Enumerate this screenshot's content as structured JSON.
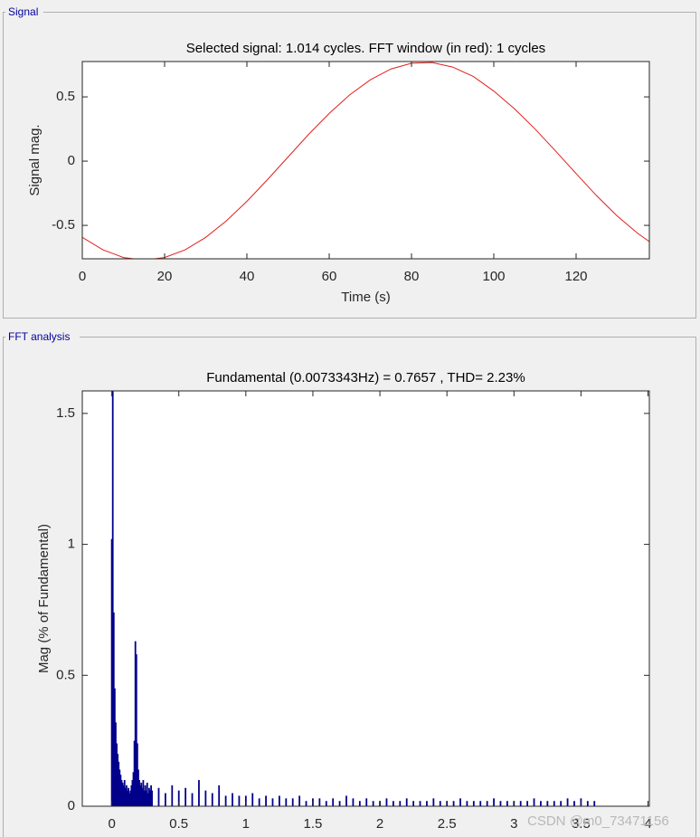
{
  "panels": [
    "Signal",
    "FFT analysis"
  ],
  "watermark": "CSDN @m0_73471156",
  "chart_data": [
    {
      "type": "line",
      "title": "Selected signal: 1.014 cycles. FFT window (in red): 1 cycles",
      "xlabel": "Time (s)",
      "ylabel": "Signal mag.",
      "color": "#e0201b",
      "x": [
        0,
        5,
        10,
        15,
        20,
        25,
        30,
        35,
        40,
        45,
        50,
        55,
        60,
        65,
        70,
        75,
        80,
        85,
        90,
        95,
        100,
        105,
        110,
        115,
        120,
        125,
        130,
        135,
        137.8
      ],
      "values": [
        -0.593,
        -0.69,
        -0.75,
        -0.77,
        -0.75,
        -0.69,
        -0.593,
        -0.465,
        -0.313,
        -0.144,
        0.032,
        0.208,
        0.371,
        0.516,
        0.633,
        0.717,
        0.762,
        0.767,
        0.732,
        0.659,
        0.545,
        0.408,
        0.251,
        0.079,
        -0.097,
        -0.27,
        -0.427,
        -0.563,
        -0.626
      ],
      "xlim": [
        0,
        137.8
      ],
      "xticks": [
        0,
        20,
        40,
        60,
        80,
        100,
        120
      ],
      "ylim": [
        -0.76,
        0.775
      ],
      "yticks": [
        -0.5,
        0,
        0.5
      ]
    },
    {
      "type": "bar",
      "title": "Fundamental (0.0073343Hz) = 0.7657 , THD= 2.23%",
      "ylabel": "Mag (% of Fundamental)",
      "color": "#00008b",
      "x": [
        0,
        0.0073,
        0.0147,
        0.022,
        0.0293,
        0.0367,
        0.044,
        0.0513,
        0.0587,
        0.066,
        0.0733,
        0.0807,
        0.088,
        0.0953,
        0.1027,
        0.11,
        0.1173,
        0.1247,
        0.132,
        0.1393,
        0.1467,
        0.154,
        0.1613,
        0.1687,
        0.176,
        0.1834,
        0.1907,
        0.198,
        0.2054,
        0.2127,
        0.22,
        0.2274,
        0.2347,
        0.242,
        0.2494,
        0.2567,
        0.264,
        0.2714,
        0.2787,
        0.286,
        0.2934,
        0.3,
        0.35,
        0.4,
        0.45,
        0.5,
        0.55,
        0.6,
        0.65,
        0.7,
        0.75,
        0.8,
        0.85,
        0.9,
        0.95,
        1,
        1.05,
        1.1,
        1.15,
        1.2,
        1.25,
        1.3,
        1.35,
        1.4,
        1.45,
        1.5,
        1.55,
        1.6,
        1.65,
        1.7,
        1.75,
        1.8,
        1.85,
        1.9,
        1.95,
        2,
        2.05,
        2.1,
        2.15,
        2.2,
        2.25,
        2.3,
        2.35,
        2.4,
        2.45,
        2.5,
        2.55,
        2.6,
        2.65,
        2.7,
        2.75,
        2.8,
        2.85,
        2.9,
        2.95,
        3,
        3.05,
        3.1,
        3.15,
        3.2,
        3.25,
        3.3,
        3.35,
        3.4,
        3.45,
        3.5,
        3.55,
        3.6
      ],
      "values": [
        1.02,
        1.6,
        0.74,
        0.45,
        0.32,
        0.24,
        0.2,
        0.17,
        0.14,
        0.12,
        0.1,
        0.09,
        0.08,
        0.1,
        0.07,
        0.08,
        0.06,
        0.07,
        0.05,
        0.06,
        0.08,
        0.1,
        0.13,
        0.25,
        0.63,
        0.58,
        0.24,
        0.14,
        0.1,
        0.08,
        0.09,
        0.07,
        0.1,
        0.06,
        0.08,
        0.06,
        0.09,
        0.05,
        0.07,
        0.06,
        0.08,
        0.06,
        0.07,
        0.05,
        0.08,
        0.06,
        0.07,
        0.05,
        0.1,
        0.06,
        0.05,
        0.08,
        0.04,
        0.05,
        0.04,
        0.04,
        0.05,
        0.03,
        0.04,
        0.03,
        0.04,
        0.03,
        0.03,
        0.04,
        0.02,
        0.03,
        0.03,
        0.02,
        0.03,
        0.02,
        0.04,
        0.03,
        0.02,
        0.03,
        0.02,
        0.02,
        0.03,
        0.02,
        0.02,
        0.03,
        0.02,
        0.02,
        0.02,
        0.03,
        0.02,
        0.02,
        0.02,
        0.03,
        0.02,
        0.02,
        0.02,
        0.02,
        0.03,
        0.02,
        0.02,
        0.02,
        0.02,
        0.02,
        0.03,
        0.02,
        0.02,
        0.02,
        0.02,
        0.03,
        0.02,
        0.03,
        0.02,
        0.02
      ],
      "xlim": [
        -0.22,
        4.01
      ],
      "xticks": [
        0,
        0.5,
        1,
        1.5,
        2,
        2.5,
        3,
        3.5,
        4
      ],
      "ylim": [
        0,
        1.586
      ],
      "yticks": [
        0,
        0.5,
        1,
        1.5
      ]
    }
  ]
}
